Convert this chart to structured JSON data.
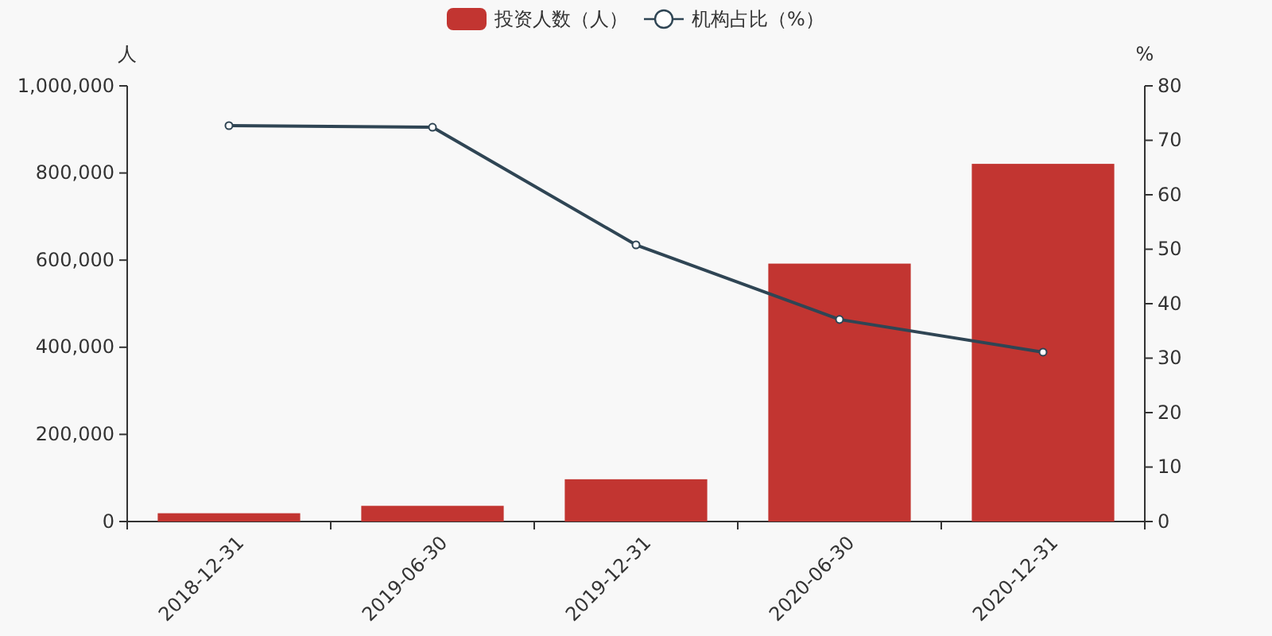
{
  "chart_data": {
    "type": "bar",
    "categories": [
      "2018-12-31",
      "2019-06-30",
      "2019-12-31",
      "2020-06-30",
      "2020-12-31"
    ],
    "series": [
      {
        "name": "投资人数（人）",
        "color": "#c23531",
        "values": [
          19000,
          36000,
          97000,
          592000,
          821000
        ]
      },
      {
        "name": "机构占比（%）",
        "type": "line",
        "axis": "y2",
        "color": "#2f4554",
        "marker": "circle",
        "values": [
          72.7,
          72.4,
          50.8,
          37.1,
          31.1
        ]
      }
    ],
    "ylabel": "人",
    "y2label": "%",
    "ylim": [
      0,
      1000000
    ],
    "yticks": [
      {
        "value": 0,
        "label": "0"
      },
      {
        "value": 200000,
        "label": "200,000"
      },
      {
        "value": 400000,
        "label": "400,000"
      },
      {
        "value": 600000,
        "label": "600,000"
      },
      {
        "value": 800000,
        "label": "800,000"
      },
      {
        "value": 1000000,
        "label": "1,000,000"
      }
    ],
    "y2lim": [
      0,
      80
    ],
    "y2ticks": [
      0,
      10,
      20,
      30,
      40,
      50,
      60,
      70,
      80
    ],
    "legend": "top",
    "grid": false
  }
}
